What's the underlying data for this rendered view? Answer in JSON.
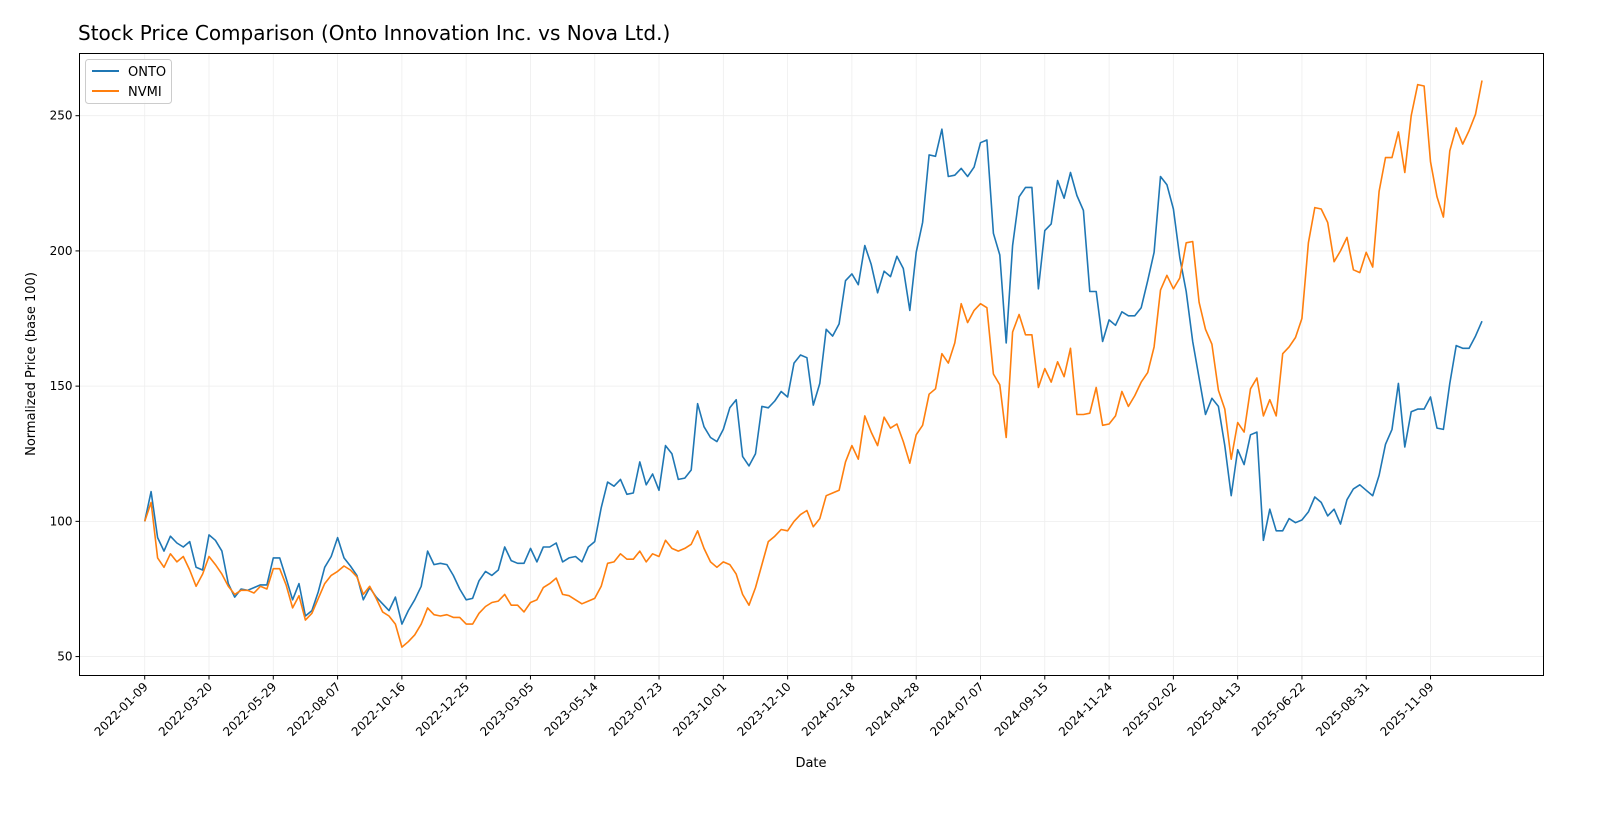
{
  "chart_data": {
    "type": "line",
    "title": "Stock Price Comparison (Onto Innovation Inc. vs Nova Ltd.)",
    "xlabel": "Date",
    "ylabel": "Normalized Price (base 100)",
    "xlim": [
      "2021-10-30",
      "2026-03-12"
    ],
    "ylim": [
      43,
      273
    ],
    "grid": true,
    "legend_position": "top-left",
    "x_ticks": [
      "2022-01-09",
      "2022-03-20",
      "2022-05-29",
      "2022-08-07",
      "2022-10-16",
      "2022-12-25",
      "2023-03-05",
      "2023-05-14",
      "2023-07-23",
      "2023-10-01",
      "2023-12-10",
      "2024-02-18",
      "2024-04-28",
      "2024-07-07",
      "2024-09-15",
      "2024-11-24",
      "2025-02-02",
      "2025-04-13",
      "2025-06-22",
      "2025-08-31",
      "2025-11-09"
    ],
    "y_ticks": [
      50,
      100,
      150,
      200,
      250
    ],
    "x": [
      "2022-01-09",
      "2022-01-16",
      "2022-01-23",
      "2022-01-30",
      "2022-02-06",
      "2022-02-13",
      "2022-02-20",
      "2022-02-27",
      "2022-03-06",
      "2022-03-13",
      "2022-03-20",
      "2022-03-27",
      "2022-04-03",
      "2022-04-10",
      "2022-04-17",
      "2022-04-24",
      "2022-05-01",
      "2022-05-08",
      "2022-05-15",
      "2022-05-22",
      "2022-05-29",
      "2022-06-05",
      "2022-06-12",
      "2022-06-19",
      "2022-06-26",
      "2022-07-03",
      "2022-07-10",
      "2022-07-17",
      "2022-07-24",
      "2022-07-31",
      "2022-08-07",
      "2022-08-14",
      "2022-08-21",
      "2022-08-28",
      "2022-09-04",
      "2022-09-11",
      "2022-09-18",
      "2022-09-25",
      "2022-10-02",
      "2022-10-09",
      "2022-10-16",
      "2022-10-23",
      "2022-10-30",
      "2022-11-06",
      "2022-11-13",
      "2022-11-20",
      "2022-11-27",
      "2022-12-04",
      "2022-12-11",
      "2022-12-18",
      "2022-12-25",
      "2023-01-01",
      "2023-01-08",
      "2023-01-15",
      "2023-01-22",
      "2023-01-29",
      "2023-02-05",
      "2023-02-12",
      "2023-02-19",
      "2023-02-26",
      "2023-03-05",
      "2023-03-12",
      "2023-03-19",
      "2023-03-26",
      "2023-04-02",
      "2023-04-09",
      "2023-04-16",
      "2023-04-23",
      "2023-04-30",
      "2023-05-07",
      "2023-05-14",
      "2023-05-21",
      "2023-05-28",
      "2023-06-04",
      "2023-06-11",
      "2023-06-18",
      "2023-06-25",
      "2023-07-02",
      "2023-07-09",
      "2023-07-16",
      "2023-07-23",
      "2023-07-30",
      "2023-08-06",
      "2023-08-13",
      "2023-08-20",
      "2023-08-27",
      "2023-09-03",
      "2023-09-10",
      "2023-09-17",
      "2023-09-24",
      "2023-10-01",
      "2023-10-08",
      "2023-10-15",
      "2023-10-22",
      "2023-10-29",
      "2023-11-05",
      "2023-11-12",
      "2023-11-19",
      "2023-11-26",
      "2023-12-03",
      "2023-12-10",
      "2023-12-17",
      "2023-12-24",
      "2023-12-31",
      "2024-01-07",
      "2024-01-14",
      "2024-01-21",
      "2024-01-28",
      "2024-02-04",
      "2024-02-11",
      "2024-02-18",
      "2024-02-25",
      "2024-03-03",
      "2024-03-10",
      "2024-03-17",
      "2024-03-24",
      "2024-03-31",
      "2024-04-07",
      "2024-04-14",
      "2024-04-21",
      "2024-04-28",
      "2024-05-05",
      "2024-05-12",
      "2024-05-19",
      "2024-05-26",
      "2024-06-02",
      "2024-06-09",
      "2024-06-16",
      "2024-06-23",
      "2024-06-30",
      "2024-07-07",
      "2024-07-14",
      "2024-07-21",
      "2024-07-28",
      "2024-08-04",
      "2024-08-11",
      "2024-08-18",
      "2024-08-25",
      "2024-09-01",
      "2024-09-08",
      "2024-09-15",
      "2024-09-22",
      "2024-09-29",
      "2024-10-06",
      "2024-10-13",
      "2024-10-20",
      "2024-10-27",
      "2024-11-03",
      "2024-11-10",
      "2024-11-17",
      "2024-11-24",
      "2024-12-01",
      "2024-12-08",
      "2024-12-15",
      "2024-12-22",
      "2024-12-29",
      "2025-01-05",
      "2025-01-12",
      "2025-01-19",
      "2025-01-26",
      "2025-02-02",
      "2025-02-09",
      "2025-02-16",
      "2025-02-23",
      "2025-03-02",
      "2025-03-09",
      "2025-03-16",
      "2025-03-23",
      "2025-03-30",
      "2025-04-06",
      "2025-04-13",
      "2025-04-20",
      "2025-04-27",
      "2025-05-04",
      "2025-05-11",
      "2025-05-18",
      "2025-05-25",
      "2025-06-01",
      "2025-06-08",
      "2025-06-15",
      "2025-06-22",
      "2025-06-29",
      "2025-07-06",
      "2025-07-13",
      "2025-07-20",
      "2025-07-27",
      "2025-08-03",
      "2025-08-10",
      "2025-08-17",
      "2025-08-24",
      "2025-08-31",
      "2025-09-07",
      "2025-09-14",
      "2025-09-21",
      "2025-09-28",
      "2025-10-05",
      "2025-10-12",
      "2025-10-19",
      "2025-10-26",
      "2025-11-02",
      "2025-11-09",
      "2025-11-16",
      "2025-11-23",
      "2025-11-30",
      "2025-12-07",
      "2025-12-14",
      "2025-12-21",
      "2025-12-28",
      "2026-01-04"
    ],
    "series": [
      {
        "name": "ONTO",
        "color": "#1f77b4",
        "values": [
          100,
          111,
          94,
          89,
          94.5,
          92,
          90.5,
          92.5,
          83,
          82,
          95,
          93,
          89,
          77,
          72,
          75,
          74.5,
          75.5,
          76.5,
          76.5,
          86.5,
          86.5,
          79,
          71,
          77,
          65,
          67,
          74,
          83,
          87,
          94,
          86.5,
          83.5,
          80,
          71,
          75.5,
          72,
          69.5,
          67,
          72,
          62,
          67,
          71,
          76,
          89,
          84,
          84.5,
          84,
          80,
          75,
          71,
          71.5,
          78,
          81.5,
          80,
          82,
          90.5,
          85.5,
          84.5,
          84.5,
          90,
          85,
          90.5,
          90.5,
          92,
          85,
          86.5,
          87,
          85,
          90.5,
          92.5,
          105,
          114.5,
          113,
          115.5,
          110,
          110.5,
          122,
          113.5,
          117.5,
          111.5,
          128,
          125,
          115.5,
          116,
          119,
          143.5,
          135,
          131,
          129.5,
          134,
          142,
          145,
          124,
          120.5,
          125,
          142.5,
          142,
          144.5,
          148,
          146,
          158.5,
          161.5,
          160.5,
          143,
          151,
          171,
          168.5,
          173,
          189,
          191.5,
          187.5,
          202,
          195,
          184.5,
          192.5,
          190.5,
          198,
          193.5,
          178,
          199.5,
          210.5,
          235.5,
          235,
          245,
          227.5,
          228,
          230.5,
          227.5,
          231,
          240,
          241,
          206.5,
          198.5,
          166,
          202,
          220,
          223.5,
          223.5,
          186,
          207.5,
          210,
          226,
          219.5,
          229,
          220.5,
          215,
          185,
          185,
          166.5,
          174.5,
          172.5,
          177.5,
          176,
          176,
          179,
          189,
          199.5,
          227.5,
          224.5,
          215.5,
          197.5,
          185,
          166.5,
          153,
          139.5,
          145.5,
          142.5,
          128,
          109.5,
          126.5,
          121,
          132,
          133,
          93,
          104.5,
          96.5,
          96.5,
          101,
          99.5,
          100.5,
          103.5,
          109,
          107,
          102,
          104.5,
          99,
          108,
          112,
          113.5,
          111.5,
          109.5,
          117,
          128.5,
          134,
          151,
          127.5,
          140.5,
          141.5,
          141.5,
          146,
          134.5,
          134,
          151,
          165,
          164,
          164,
          168.5,
          174
        ]
      },
      {
        "name": "NVMI",
        "color": "#ff7f0e",
        "values": [
          100,
          107,
          86.5,
          83,
          88,
          85,
          87,
          82,
          76,
          80.5,
          87,
          84,
          80.5,
          76,
          73,
          74.5,
          74.5,
          73.5,
          76,
          75,
          82.5,
          82.5,
          76.5,
          68,
          72.5,
          63.5,
          66,
          71.5,
          77,
          80,
          81.5,
          83.5,
          82,
          79.5,
          73,
          76,
          71.5,
          66.5,
          65,
          62,
          53.5,
          55.5,
          58,
          62,
          68,
          65.5,
          65,
          65.5,
          64.5,
          64.5,
          62,
          62,
          66,
          68.5,
          70,
          70.5,
          73,
          69,
          69,
          66.5,
          70,
          71,
          75.5,
          77,
          79,
          73,
          72.5,
          71,
          69.5,
          70.5,
          71.5,
          76,
          84.5,
          85,
          88,
          86,
          86,
          89,
          85,
          88,
          87,
          93,
          90,
          89,
          90,
          91.5,
          96.5,
          90,
          85,
          83,
          85,
          84,
          80.5,
          73,
          69,
          75.5,
          84,
          92.5,
          94.5,
          97,
          96.5,
          100,
          102.5,
          104,
          98,
          101,
          109.5,
          110.5,
          111.5,
          122,
          128,
          123,
          139,
          133,
          128,
          138.5,
          134.5,
          136,
          129.5,
          121.5,
          132,
          135.5,
          147,
          149,
          162,
          158.5,
          166,
          180.5,
          173.5,
          178,
          180.5,
          179,
          154.5,
          150.5,
          131,
          170,
          176.5,
          169,
          169,
          149.5,
          156.5,
          151.5,
          159,
          153.5,
          164,
          139.5,
          139.5,
          140,
          149.5,
          135.5,
          136,
          139,
          148,
          142.5,
          146.5,
          151.5,
          155,
          164.5,
          185.5,
          191,
          186,
          190,
          203,
          203.5,
          181,
          171,
          165.5,
          148.5,
          141.5,
          123,
          136.5,
          133,
          149,
          153,
          139,
          145,
          139,
          162,
          164.5,
          168,
          175,
          203,
          216,
          215.5,
          210.5,
          196,
          200,
          205,
          193,
          192,
          199.5,
          194,
          222,
          234.5,
          234.5,
          244,
          229,
          250,
          261.5,
          261,
          233,
          220,
          212.5,
          237,
          245.5,
          239.5,
          244.5,
          250.5,
          263
        ]
      }
    ]
  }
}
